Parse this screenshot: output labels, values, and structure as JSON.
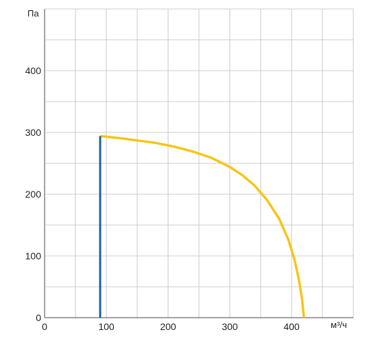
{
  "chart_data": {
    "type": "line",
    "ylabel": "Па",
    "xlabel": "м³/ч",
    "xlim": [
      0,
      500
    ],
    "ylim": [
      0,
      500
    ],
    "x_ticks": [
      0,
      100,
      200,
      300,
      400
    ],
    "y_ticks": [
      0,
      100,
      200,
      300,
      400
    ],
    "x_gridlines": [
      0,
      50,
      100,
      150,
      200,
      250,
      300,
      350,
      400,
      450,
      500
    ],
    "y_gridlines": [
      0,
      50,
      100,
      150,
      200,
      250,
      300,
      350,
      400,
      450,
      500
    ],
    "grid": true,
    "series": [
      {
        "color": "#f5c518",
        "x": [
          90,
          120,
          150,
          180,
          210,
          240,
          270,
          300,
          320,
          340,
          360,
          380,
          395,
          405,
          412,
          417,
          420
        ],
        "y": [
          294,
          291,
          287,
          283,
          277,
          269,
          259,
          244,
          231,
          214,
          191,
          160,
          126,
          93,
          61,
          30,
          0
        ]
      },
      {
        "color": "#1f5fa0",
        "x": [
          90,
          90
        ],
        "y": [
          0,
          294
        ]
      }
    ]
  }
}
